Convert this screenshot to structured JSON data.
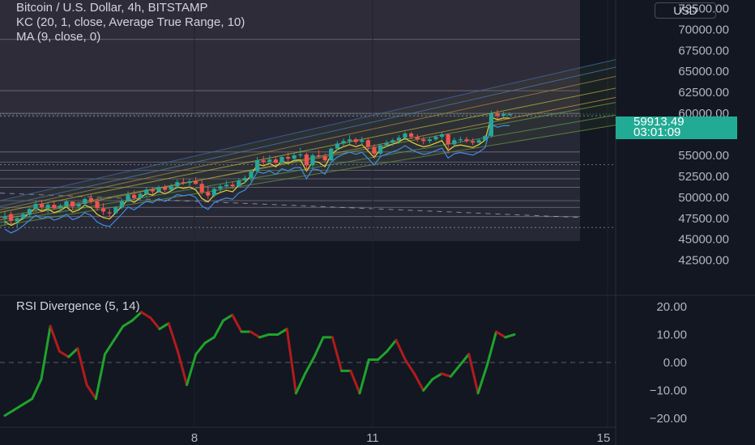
{
  "title": "Bitcoin / U.S. Dollar, 4h, BITSTAMP",
  "indicators": {
    "kc": "KC (20, 1, close, Average True Range, 10)",
    "ma": "MA (9, close, 0)",
    "rsi": "RSI Divergence (5, 14)"
  },
  "currency_button": "USD",
  "current_price": {
    "value": "59913.49",
    "countdown": "03:01:09"
  },
  "colors": {
    "background": "#131722",
    "up": "#26a69a",
    "down": "#ef5350",
    "rsi_up": "#1fa32b",
    "rsi_down": "#b21b1b",
    "price_tag": "#22ab94"
  },
  "chart_data": [
    {
      "type": "candlestick",
      "title": "Bitcoin / U.S. Dollar, 4h, BITSTAMP",
      "y_ticks": [
        "72500.00",
        "70000.00",
        "67500.00",
        "65000.00",
        "62500.00",
        "60000.00",
        "57500.00",
        "55000.00",
        "52500.00",
        "50000.00",
        "47500.00",
        "45000.00",
        "42500.00"
      ],
      "y_range": [
        41500,
        73500
      ],
      "x_ticks": [
        "8",
        "11",
        "15"
      ],
      "candles": [
        [
          47500,
          48300,
          46700,
          47700
        ],
        [
          48000,
          48300,
          46800,
          47200
        ],
        [
          47100,
          47800,
          46400,
          47500
        ],
        [
          47500,
          48200,
          47300,
          48000
        ],
        [
          47900,
          48700,
          47600,
          48600
        ],
        [
          48600,
          49600,
          48300,
          49200
        ],
        [
          49200,
          49700,
          48500,
          48800
        ],
        [
          48700,
          49300,
          48100,
          49100
        ],
        [
          49100,
          49600,
          48600,
          48700
        ],
        [
          48700,
          49200,
          48200,
          49000
        ],
        [
          48900,
          49700,
          48800,
          49500
        ],
        [
          49500,
          49500,
          48500,
          48900
        ],
        [
          48900,
          49400,
          48700,
          49200
        ],
        [
          49200,
          50000,
          49000,
          49800
        ],
        [
          49900,
          50300,
          49200,
          49500
        ],
        [
          49500,
          49900,
          48400,
          48700
        ],
        [
          48700,
          49300,
          47900,
          48300
        ],
        [
          48200,
          48600,
          47600,
          48100
        ],
        [
          48100,
          48900,
          48000,
          48800
        ],
        [
          48800,
          49800,
          48600,
          49500
        ],
        [
          49500,
          50700,
          49400,
          50300
        ],
        [
          50300,
          50800,
          49600,
          49900
        ],
        [
          49900,
          50600,
          49600,
          50400
        ],
        [
          50400,
          51200,
          50100,
          50900
        ],
        [
          50900,
          51200,
          50300,
          50700
        ],
        [
          50700,
          51400,
          50500,
          51200
        ],
        [
          51200,
          51500,
          50600,
          50900
        ],
        [
          50900,
          51600,
          50800,
          51300
        ],
        [
          51300,
          52100,
          51000,
          51800
        ],
        [
          51800,
          52300,
          51500,
          51700
        ],
        [
          51700,
          52200,
          51200,
          51900
        ],
        [
          51900,
          52400,
          51500,
          51600
        ],
        [
          51600,
          52000,
          50300,
          50600
        ],
        [
          50600,
          51300,
          49800,
          50200
        ],
        [
          50200,
          51200,
          50000,
          51000
        ],
        [
          51000,
          51600,
          50600,
          51300
        ],
        [
          51300,
          52000,
          51100,
          51500
        ],
        [
          51500,
          51900,
          51000,
          51300
        ],
        [
          51300,
          52300,
          51200,
          52000
        ],
        [
          52000,
          52600,
          51700,
          52300
        ],
        [
          52300,
          53300,
          51900,
          53100
        ],
        [
          53100,
          54800,
          52900,
          54400
        ],
        [
          54400,
          54900,
          53800,
          54200
        ],
        [
          54200,
          55000,
          53900,
          54500
        ],
        [
          54500,
          54900,
          54000,
          54100
        ],
        [
          54100,
          54900,
          54000,
          54800
        ],
        [
          54800,
          55300,
          54200,
          54600
        ],
        [
          54600,
          55200,
          54300,
          55000
        ],
        [
          55000,
          55900,
          54700,
          55100
        ],
        [
          55100,
          55300,
          53100,
          53800
        ],
        [
          53800,
          55200,
          53600,
          55000
        ],
        [
          55000,
          55600,
          54600,
          54900
        ],
        [
          54900,
          55200,
          54200,
          54400
        ],
        [
          54400,
          55900,
          54300,
          55800
        ],
        [
          55800,
          56700,
          55600,
          56400
        ],
        [
          56400,
          57000,
          56000,
          56700
        ],
        [
          56700,
          57400,
          56300,
          56900
        ],
        [
          56900,
          57100,
          56300,
          56600
        ],
        [
          56600,
          57200,
          56200,
          56800
        ],
        [
          56800,
          57000,
          55600,
          56000
        ],
        [
          56000,
          56300,
          54600,
          55200
        ],
        [
          55200,
          56400,
          55000,
          56200
        ],
        [
          56200,
          56800,
          56000,
          56500
        ],
        [
          56500,
          57000,
          56100,
          56800
        ],
        [
          56800,
          57400,
          56400,
          57100
        ],
        [
          57100,
          57800,
          56800,
          57600
        ],
        [
          57600,
          57800,
          56900,
          57200
        ],
        [
          57200,
          57500,
          56600,
          56900
        ],
        [
          56900,
          57200,
          56300,
          56700
        ],
        [
          56700,
          57100,
          56400,
          56900
        ],
        [
          56900,
          57400,
          56700,
          57200
        ],
        [
          57200,
          57800,
          56900,
          57500
        ],
        [
          57500,
          57600,
          55200,
          56300
        ],
        [
          56300,
          57100,
          56100,
          56800
        ],
        [
          56800,
          57200,
          56500,
          56900
        ],
        [
          56900,
          57200,
          56500,
          56700
        ],
        [
          56700,
          57000,
          56200,
          56500
        ],
        [
          56500,
          57000,
          56400,
          56800
        ],
        [
          56800,
          57400,
          56700,
          57300
        ],
        [
          57300,
          60300,
          57100,
          60000
        ],
        [
          60000,
          60400,
          59300,
          59700
        ],
        [
          59700,
          60200,
          59500,
          59900
        ],
        [
          59900,
          60100,
          59700,
          59913
        ]
      ],
      "last_price": 59913.49
    },
    {
      "type": "line",
      "title": "RSI Divergence (5, 14)",
      "y_ticks": [
        "20.00",
        "10.00",
        "0.00",
        "−10.00",
        "−20.00"
      ],
      "y_range": [
        -22,
        22
      ],
      "values": [
        -19,
        -17,
        -15,
        -13,
        -6,
        13,
        4,
        2,
        5,
        -8,
        -13,
        3,
        8,
        13,
        15,
        18,
        16,
        12,
        14,
        4,
        -8,
        3,
        7,
        9,
        15,
        17,
        11,
        11,
        9,
        10,
        10,
        12,
        -11,
        -4,
        2,
        9,
        9,
        -3,
        -3,
        -11,
        1,
        1,
        4,
        8,
        1,
        -4,
        -10,
        -6,
        -4,
        -5,
        -1,
        3,
        -11,
        -1,
        11,
        9,
        10
      ],
      "up_color": "#1fa32b",
      "down_color": "#b21b1b"
    }
  ]
}
